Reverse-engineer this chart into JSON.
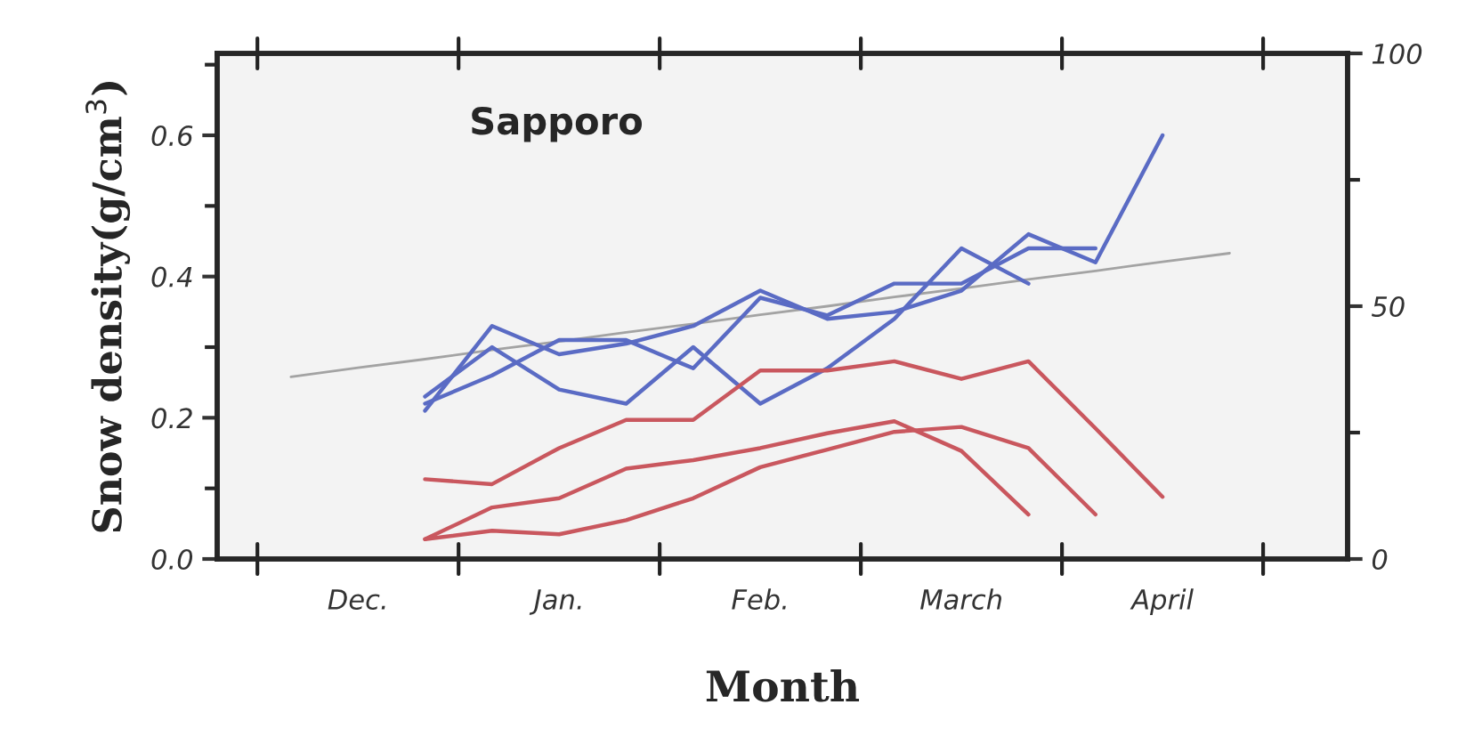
{
  "chart_data": {
    "type": "line",
    "title": "Sapporo",
    "xlabel": "Month",
    "ylabel": "Snow density(g/cm$^{3}$)",
    "categories": [
      null,
      "Dec.",
      null,
      null,
      "Jan.",
      null,
      null,
      "Feb.",
      null,
      null,
      "March",
      null,
      null,
      "April",
      null
    ],
    "ylim": [
      0,
      0.716
    ],
    "yticks": [
      {
        "value": 0,
        "label": "0.0"
      },
      {
        "value": 0.2,
        "label": "0.2"
      },
      {
        "value": 0.4,
        "label": "0.4"
      },
      {
        "value": 0.6,
        "label": "0.6"
      }
    ],
    "y2lim": [
      0,
      100
    ],
    "y2ticks": [
      0,
      50,
      100
    ],
    "grid": false,
    "legend": false,
    "series": [
      {
        "color": "#a3a3a3",
        "values": [
          0.258,
          0.271,
          0.283,
          0.296,
          0.308,
          0.321,
          0.333,
          0.346,
          0.358,
          0.371,
          0.383,
          0.396,
          0.408,
          0.421,
          0.433
        ]
      },
      {
        "color": "#5a6bc4",
        "values": [
          null,
          null,
          0.23,
          0.3,
          0.24,
          0.22,
          0.3,
          0.22,
          0.27,
          0.34,
          0.44,
          0.39,
          null,
          null,
          null
        ]
      },
      {
        "color": "#5a6bc4",
        "values": [
          null,
          null,
          0.21,
          0.33,
          0.29,
          0.305,
          0.33,
          0.38,
          0.34,
          0.35,
          0.38,
          0.46,
          0.42,
          0.6,
          null
        ]
      },
      {
        "color": "#5a6bc4",
        "values": [
          null,
          null,
          0.22,
          0.26,
          0.31,
          0.31,
          0.27,
          0.37,
          0.345,
          0.39,
          0.39,
          0.44,
          0.44,
          null,
          null
        ]
      },
      {
        "color": "#c9575e",
        "values": [
          null,
          null,
          0.113,
          0.106,
          0.157,
          0.197,
          0.197,
          0.267,
          0.267,
          0.28,
          0.255,
          0.28,
          0.185,
          0.088,
          null
        ]
      },
      {
        "color": "#c9575e",
        "values": [
          null,
          null,
          0.028,
          0.073,
          0.086,
          0.128,
          0.14,
          0.157,
          0.178,
          0.195,
          0.153,
          0.063,
          null,
          null,
          null
        ]
      },
      {
        "color": "#c9575e",
        "values": [
          null,
          null,
          0.028,
          0.04,
          0.035,
          0.055,
          0.086,
          0.13,
          0.155,
          0.18,
          0.187,
          0.157,
          0.063,
          null,
          null
        ]
      }
    ]
  }
}
